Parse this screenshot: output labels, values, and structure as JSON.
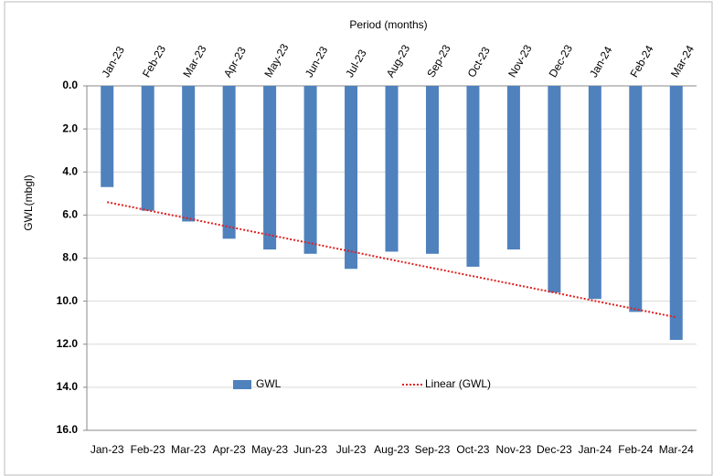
{
  "chart_data": {
    "type": "bar",
    "title": "Period (months)",
    "y_label": "GWL(mbgl)",
    "categories": [
      "Jan-23",
      "Feb-23",
      "Mar-23",
      "Apr-23",
      "May-23",
      "Jun-23",
      "Jul-23",
      "Aug-23",
      "Sep-23",
      "Oct-23",
      "Nov-23",
      "Dec-23",
      "Jan-24",
      "Feb-24",
      "Mar-24"
    ],
    "series": [
      {
        "name": "GWL",
        "type": "bar",
        "color": "#4f81bd",
        "values": [
          4.7,
          5.8,
          6.3,
          7.1,
          7.6,
          7.8,
          8.5,
          7.7,
          7.8,
          8.4,
          7.6,
          9.6,
          9.9,
          10.5,
          11.8
        ]
      },
      {
        "name": "Linear (GWL)",
        "type": "line",
        "color": "#e02020",
        "values": [
          5.4,
          5.78,
          6.16,
          6.55,
          6.93,
          7.31,
          7.69,
          8.08,
          8.46,
          8.84,
          9.22,
          9.6,
          9.99,
          10.37,
          10.75
        ]
      }
    ],
    "ylim": [
      0,
      16
    ],
    "y_inverted": true,
    "yticks": [
      {
        "value": 0,
        "label": "0.0"
      },
      {
        "value": 2,
        "label": "2.0"
      },
      {
        "value": 4,
        "label": "4.0"
      },
      {
        "value": 6,
        "label": "6.0"
      },
      {
        "value": 8,
        "label": "8.0"
      },
      {
        "value": 10,
        "label": "10.0"
      },
      {
        "value": 12,
        "label": "12.0"
      },
      {
        "value": 14,
        "label": "14.0"
      },
      {
        "value": 16,
        "label": "16.0"
      }
    ],
    "grid": true,
    "legend": "bottom"
  }
}
